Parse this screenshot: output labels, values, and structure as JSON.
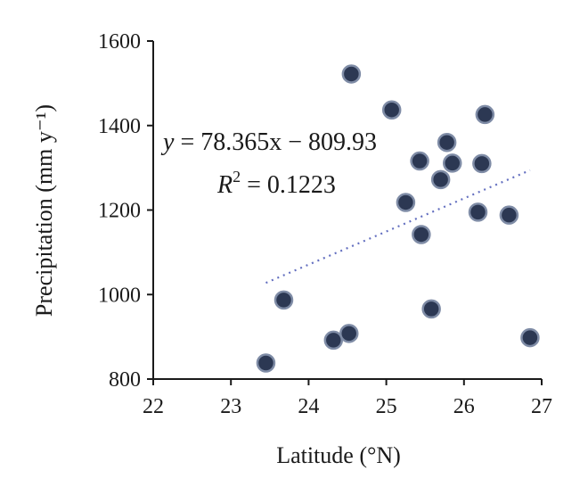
{
  "chart_data": {
    "type": "scatter",
    "xlabel": "Latitude (°N)",
    "ylabel": "Precipitation (mm y⁻¹)",
    "xlim": [
      22,
      27
    ],
    "ylim": [
      800,
      1600
    ],
    "xticks": [
      "22",
      "23",
      "24",
      "25",
      "26",
      "27"
    ],
    "yticks": [
      "800",
      "1000",
      "1200",
      "1400",
      "1600"
    ],
    "grid": false,
    "points": [
      {
        "x": 23.45,
        "y": 838
      },
      {
        "x": 23.68,
        "y": 987
      },
      {
        "x": 24.32,
        "y": 892
      },
      {
        "x": 24.52,
        "y": 908
      },
      {
        "x": 24.55,
        "y": 1522
      },
      {
        "x": 25.07,
        "y": 1437
      },
      {
        "x": 25.25,
        "y": 1218
      },
      {
        "x": 25.43,
        "y": 1316
      },
      {
        "x": 25.45,
        "y": 1142
      },
      {
        "x": 25.58,
        "y": 966
      },
      {
        "x": 25.7,
        "y": 1272
      },
      {
        "x": 25.78,
        "y": 1360
      },
      {
        "x": 25.85,
        "y": 1311
      },
      {
        "x": 26.18,
        "y": 1195
      },
      {
        "x": 26.23,
        "y": 1310
      },
      {
        "x": 26.27,
        "y": 1426
      },
      {
        "x": 26.58,
        "y": 1188
      },
      {
        "x": 26.85,
        "y": 898
      }
    ],
    "trendline": {
      "slope": 78.365,
      "intercept": -809.93,
      "x_range": [
        23.45,
        26.85
      ]
    },
    "annotations": {
      "equation": {
        "var": "y",
        "rhs": " = 78.365x − 809.93"
      },
      "r_squared": {
        "base": "R",
        "exp": "2",
        "rhs": " = 0.1223"
      }
    }
  }
}
